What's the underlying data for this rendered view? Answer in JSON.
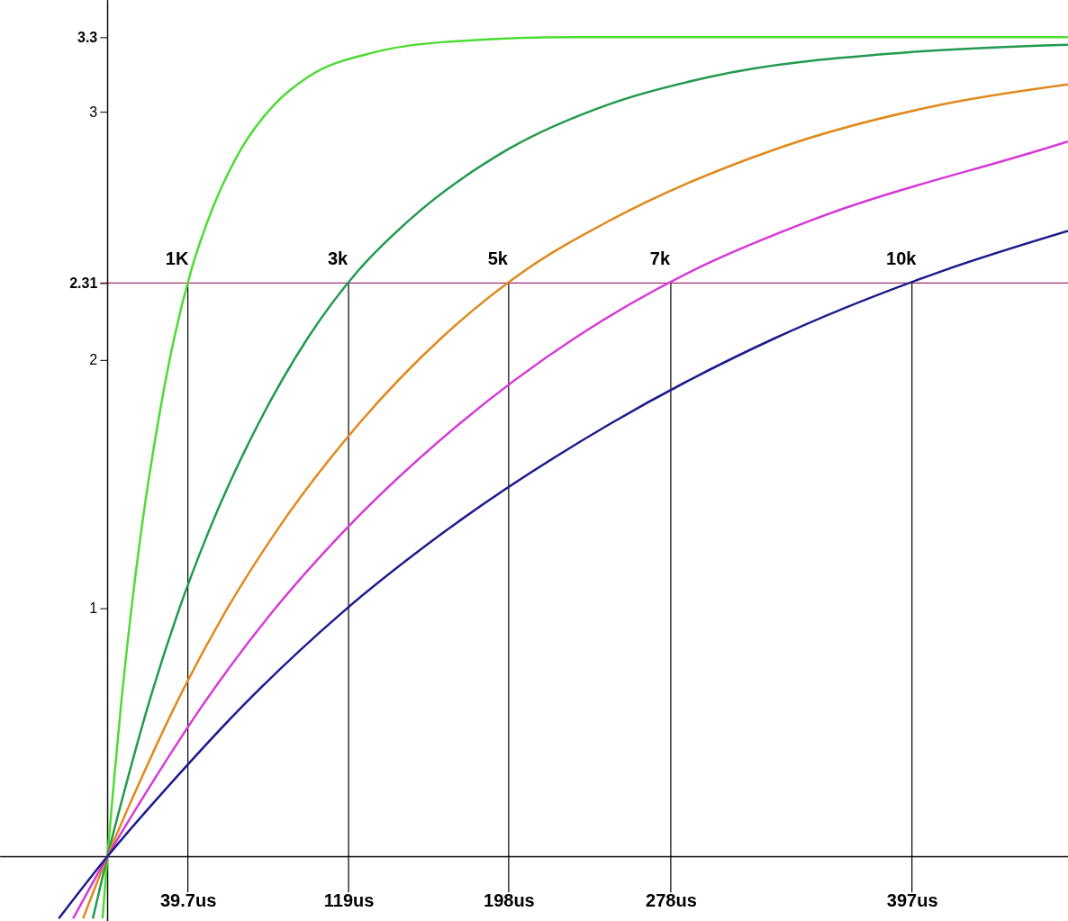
{
  "chart_data": {
    "type": "line",
    "xlim": [
      -53,
      474
    ],
    "ylim": [
      -0.26,
      3.45
    ],
    "xticks": [
      {
        "value": 39.7,
        "label": "39.7us"
      },
      {
        "value": 119,
        "label": "119us"
      },
      {
        "value": 198,
        "label": "198us"
      },
      {
        "value": 278,
        "label": "278us"
      },
      {
        "value": 397,
        "label": "397us"
      }
    ],
    "yticks": [
      1,
      2,
      2.31,
      3,
      3.3
    ],
    "grid": false,
    "marker": "none",
    "line_style": "solid",
    "series": [
      {
        "color": "#4cdc32",
        "x": [
          -2.4,
          0,
          3.3,
          6.6,
          11.6,
          16.5,
          24.8,
          33,
          41.3,
          49.5,
          66,
          82.5,
          99,
          132,
          165,
          231,
          474
        ],
        "values": [
          -0.25,
          0,
          0.31,
          0.6,
          0.98,
          1.3,
          1.74,
          2.09,
          2.36,
          2.56,
          2.85,
          3.03,
          3.14,
          3.24,
          3.28,
          3.3,
          3.3
        ]
      },
      {
        "color": "#229a4e",
        "x": [
          -7.2,
          0,
          9.9,
          19.8,
          34.7,
          49.5,
          74.3,
          99,
          123.8,
          148.5,
          198,
          247.5,
          297,
          396,
          474
        ],
        "values": [
          -0.25,
          0,
          0.31,
          0.6,
          0.98,
          1.3,
          1.74,
          2.09,
          2.36,
          2.56,
          2.85,
          3.03,
          3.14,
          3.24,
          3.27
        ]
      },
      {
        "color": "#e0891c",
        "x": [
          -12,
          0,
          16.5,
          33,
          57.8,
          82.5,
          123.8,
          165,
          206,
          247.5,
          330,
          412.5,
          474
        ],
        "values": [
          -0.25,
          0,
          0.31,
          0.6,
          0.98,
          1.3,
          1.74,
          2.09,
          2.36,
          2.56,
          2.85,
          3.03,
          3.11
        ]
      },
      {
        "color": "#d63ad6",
        "x": [
          -16.9,
          0,
          23.1,
          46.2,
          80.9,
          115.5,
          173.3,
          231,
          288.8,
          346.5,
          462,
          474
        ],
        "values": [
          -0.25,
          0,
          0.31,
          0.6,
          0.98,
          1.3,
          1.74,
          2.09,
          2.36,
          2.56,
          2.85,
          2.88
        ]
      },
      {
        "color": "#1c1c8c",
        "x": [
          -24,
          0,
          33,
          66,
          115.5,
          165,
          247.5,
          330,
          412.5,
          474
        ],
        "values": [
          -0.25,
          0,
          0.31,
          0.6,
          0.98,
          1.3,
          1.74,
          2.09,
          2.36,
          2.52
        ]
      }
    ],
    "ref_lines": [
      {
        "axis": "y",
        "value": 2.31,
        "color": "#a03070"
      },
      {
        "axis": "x",
        "value": 39.7,
        "color": "#000000"
      },
      {
        "axis": "x",
        "value": 119,
        "color": "#000000"
      },
      {
        "axis": "x",
        "value": 198,
        "color": "#000000"
      },
      {
        "axis": "x",
        "value": 278,
        "color": "#000000"
      },
      {
        "axis": "x",
        "value": 397,
        "color": "#000000"
      }
    ],
    "annotations": [
      {
        "text": "1K",
        "x": 39.7,
        "y": 2.31
      },
      {
        "text": "3k",
        "x": 119,
        "y": 2.31
      },
      {
        "text": "5k",
        "x": 198,
        "y": 2.31
      },
      {
        "text": "7k",
        "x": 278,
        "y": 2.31
      },
      {
        "text": "10k",
        "x": 397,
        "y": 2.31
      }
    ]
  }
}
